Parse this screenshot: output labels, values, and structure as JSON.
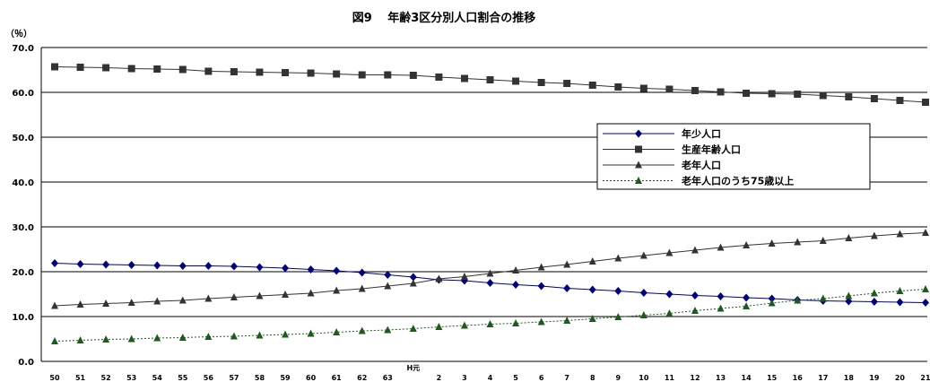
{
  "chart_data": {
    "type": "line",
    "title": "図9　 年齢3区分別人口割合の推移",
    "ylabel": "（％）",
    "xlabel": "",
    "ylim": [
      0,
      70
    ],
    "yticks": [
      "0.0",
      "10.0",
      "20.0",
      "30.0",
      "40.0",
      "50.0",
      "60.0",
      "70.0"
    ],
    "grid": true,
    "legend_position": "right",
    "categories": [
      "50",
      "51",
      "52",
      "53",
      "54",
      "55",
      "56",
      "57",
      "58",
      "59",
      "60",
      "61",
      "62",
      "63",
      "H元",
      "2",
      "3",
      "4",
      "5",
      "6",
      "7",
      "8",
      "9",
      "10",
      "11",
      "12",
      "13",
      "14",
      "15",
      "16",
      "17",
      "18",
      "19",
      "20",
      "21"
    ],
    "series": [
      {
        "name": "年少人口",
        "color": "#000080",
        "marker": "diamond",
        "dash": "solid",
        "values": [
          21.9,
          21.7,
          21.6,
          21.5,
          21.4,
          21.3,
          21.3,
          21.2,
          21.0,
          20.8,
          20.5,
          20.2,
          19.8,
          19.3,
          18.8,
          18.2,
          18.0,
          17.5,
          17.1,
          16.8,
          16.3,
          16.0,
          15.7,
          15.3,
          15.0,
          14.7,
          14.5,
          14.2,
          14.0,
          13.7,
          13.5,
          13.4,
          13.3,
          13.2,
          13.1
        ]
      },
      {
        "name": "生産年齢人口",
        "color": "#333333",
        "marker": "square",
        "dash": "solid",
        "values": [
          65.7,
          65.6,
          65.5,
          65.3,
          65.2,
          65.1,
          64.7,
          64.6,
          64.5,
          64.4,
          64.3,
          64.1,
          63.9,
          63.9,
          63.8,
          63.4,
          63.1,
          62.8,
          62.5,
          62.2,
          62.0,
          61.6,
          61.2,
          60.9,
          60.7,
          60.4,
          60.1,
          59.8,
          59.7,
          59.6,
          59.3,
          59.0,
          58.6,
          58.2,
          57.8
        ]
      },
      {
        "name": "老年人口",
        "color": "#333333",
        "marker": "triangle",
        "dash": "solid",
        "values": [
          12.4,
          12.7,
          12.9,
          13.1,
          13.4,
          13.6,
          14.0,
          14.3,
          14.6,
          14.9,
          15.2,
          15.8,
          16.2,
          16.8,
          17.4,
          18.4,
          18.9,
          19.6,
          20.3,
          21.0,
          21.6,
          22.3,
          23.0,
          23.6,
          24.2,
          24.8,
          25.4,
          25.9,
          26.3,
          26.6,
          26.9,
          27.5,
          28.0,
          28.4,
          28.7
        ]
      },
      {
        "name": "老年人口のうち75歳以上",
        "color": "#1e5a1e",
        "marker": "triangle",
        "dash": "dotted",
        "values": [
          4.5,
          4.7,
          4.9,
          5.0,
          5.2,
          5.3,
          5.5,
          5.6,
          5.8,
          6.0,
          6.2,
          6.5,
          6.8,
          7.0,
          7.3,
          7.7,
          8.0,
          8.3,
          8.5,
          8.8,
          9.1,
          9.5,
          9.9,
          10.3,
          10.7,
          11.3,
          11.8,
          12.3,
          13.0,
          13.6,
          14.0,
          14.6,
          15.2,
          15.7,
          16.1
        ]
      }
    ]
  }
}
